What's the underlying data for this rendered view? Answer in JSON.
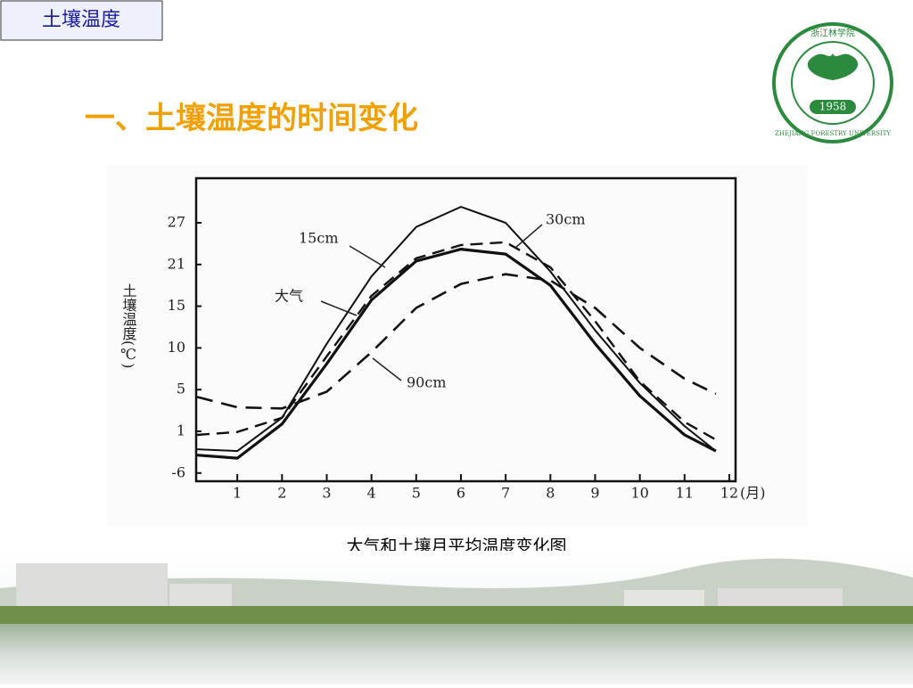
{
  "slide": {
    "tag": "土壤温度",
    "heading": "一、土壤温度的时间变化",
    "logo": {
      "name": "浙江林学院",
      "year": "1958",
      "english": "ZHEJIANG FORESTRY UNIVERSITY"
    }
  },
  "chart_data": {
    "type": "line",
    "title": "大气和土壤月平均温度变化图",
    "y_label": "土壤温度(℃)",
    "x_label": "(月)",
    "x": [
      0.1,
      1,
      2,
      3,
      4,
      5,
      6,
      7,
      8,
      9,
      10,
      11,
      11.7
    ],
    "xlim": [
      0.08,
      12.14
    ],
    "xticks": [
      1,
      2,
      3,
      4,
      5,
      6,
      7,
      8,
      9,
      10,
      11,
      12
    ],
    "yticks": [
      27,
      21,
      15,
      10,
      5,
      1,
      -6
    ],
    "series": [
      {
        "name": "15cm",
        "color": "#111111",
        "dashed": false,
        "values": [
          -2.0,
          -2.3,
          2.3,
          10.5,
          19.3,
          26.4,
          29.3,
          27,
          20,
          12.1,
          5.8,
          1.5,
          -2.3
        ]
      },
      {
        "name": "大气",
        "color": "#111111",
        "dashed": false,
        "values": [
          -3.0,
          -3.5,
          1.7,
          8.1,
          15.9,
          21.5,
          23.2,
          22.5,
          18.0,
          10.5,
          4.4,
          0.4,
          -2.3
        ]
      },
      {
        "name": "30cm",
        "color": "#111111",
        "dashed": true,
        "values": [
          0.4,
          0.9,
          2.3,
          9.0,
          16.5,
          21.9,
          23.8,
          24.2,
          20.6,
          13.2,
          6.0,
          1.9,
          -0.4
        ]
      },
      {
        "name": "90cm",
        "color": "#111111",
        "dashed": true,
        "values": [
          4.3,
          3.3,
          3.2,
          4.8,
          9.5,
          14.8,
          18.2,
          19.6,
          18.7,
          14.8,
          10,
          6.3,
          4.6
        ]
      }
    ]
  }
}
